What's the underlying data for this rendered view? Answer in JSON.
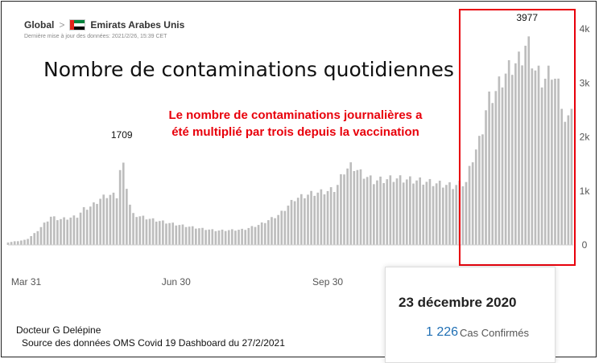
{
  "breadcrumb": {
    "root": "Global",
    "separator": ">",
    "country": "Emirats Arabes Unis",
    "flag_icon": "uae-flag-icon",
    "updated": "Dernière mise à jour des données: 2021/2/26, 15:39 CET"
  },
  "title": "Nombre de contaminations quotidiennes",
  "annotation_line1": "Le nombre de contaminations journalières a",
  "annotation_line2": "été multiplié par trois depuis la vaccination",
  "peak_label_1": "1709",
  "peak_label_2": "3977",
  "detail": {
    "date": "23 décembre 2020",
    "value": "1 226",
    "label": "Cas Confirmés"
  },
  "credit_author": "Docteur G Delépine",
  "credit_source": "Source des données OMS Covid 19 Dashboard du 27/2/2021",
  "colors": {
    "bars": "#bdbdbd",
    "highlight_box": "#e8000b",
    "annotation": "#e8000b",
    "value": "#1f6fb4"
  },
  "chart_data": {
    "type": "bar",
    "title": "Nombre de contaminations quotidiennes",
    "xlabel": "",
    "ylabel": "",
    "x_tick_labels": [
      "Mar 31",
      "Jun 30",
      "Sep 30"
    ],
    "y_tick_labels": [
      "0",
      "1k",
      "2k",
      "3k",
      "4k"
    ],
    "ylim": [
      0,
      4000
    ],
    "grid": false,
    "legend": "none",
    "y_axis_position": "right",
    "anchors": [
      {
        "x": "2020-03-20",
        "y": 50
      },
      {
        "x": "2020-03-31",
        "y": 100
      },
      {
        "x": "2020-04-05",
        "y": 220
      },
      {
        "x": "2020-04-10",
        "y": 380
      },
      {
        "x": "2020-04-15",
        "y": 550
      },
      {
        "x": "2020-04-20",
        "y": 500
      },
      {
        "x": "2020-04-25",
        "y": 520
      },
      {
        "x": "2020-05-01",
        "y": 560
      },
      {
        "x": "2020-05-05",
        "y": 700
      },
      {
        "x": "2020-05-10",
        "y": 760
      },
      {
        "x": "2020-05-15",
        "y": 900
      },
      {
        "x": "2020-05-20",
        "y": 980
      },
      {
        "x": "2020-05-25",
        "y": 960
      },
      {
        "x": "2020-05-28",
        "y": 1709
      },
      {
        "x": "2020-06-03",
        "y": 600
      },
      {
        "x": "2020-06-15",
        "y": 500
      },
      {
        "x": "2020-06-30",
        "y": 400
      },
      {
        "x": "2020-07-15",
        "y": 320
      },
      {
        "x": "2020-07-25",
        "y": 280
      },
      {
        "x": "2020-08-10",
        "y": 300
      },
      {
        "x": "2020-08-20",
        "y": 400
      },
      {
        "x": "2020-09-01",
        "y": 600
      },
      {
        "x": "2020-09-10",
        "y": 900
      },
      {
        "x": "2020-09-20",
        "y": 1000
      },
      {
        "x": "2020-09-30",
        "y": 1050
      },
      {
        "x": "2020-10-05",
        "y": 1100
      },
      {
        "x": "2020-10-10",
        "y": 1450
      },
      {
        "x": "2020-10-15",
        "y": 1550
      },
      {
        "x": "2020-10-20",
        "y": 1400
      },
      {
        "x": "2020-10-28",
        "y": 1250
      },
      {
        "x": "2020-11-10",
        "y": 1300
      },
      {
        "x": "2020-11-25",
        "y": 1250
      },
      {
        "x": "2020-12-05",
        "y": 1200
      },
      {
        "x": "2020-12-15",
        "y": 1150
      },
      {
        "x": "2020-12-23",
        "y": 1226
      },
      {
        "x": "2020-12-27",
        "y": 1700
      },
      {
        "x": "2021-01-01",
        "y": 2100
      },
      {
        "x": "2021-01-05",
        "y": 2800
      },
      {
        "x": "2021-01-10",
        "y": 3000
      },
      {
        "x": "2021-01-15",
        "y": 3300
      },
      {
        "x": "2021-01-20",
        "y": 3500
      },
      {
        "x": "2021-01-25",
        "y": 3600
      },
      {
        "x": "2021-01-29",
        "y": 3977
      },
      {
        "x": "2021-02-03",
        "y": 3400
      },
      {
        "x": "2021-02-08",
        "y": 3200
      },
      {
        "x": "2021-02-13",
        "y": 3400
      },
      {
        "x": "2021-02-18",
        "y": 3000
      },
      {
        "x": "2021-02-22",
        "y": 2200
      },
      {
        "x": "2021-02-26",
        "y": 3000
      }
    ],
    "annotations": [
      {
        "x": "2020-05-28",
        "text": "1709"
      },
      {
        "x": "2021-01-29",
        "text": "3977"
      }
    ],
    "highlight_from": "2020-12-23"
  }
}
